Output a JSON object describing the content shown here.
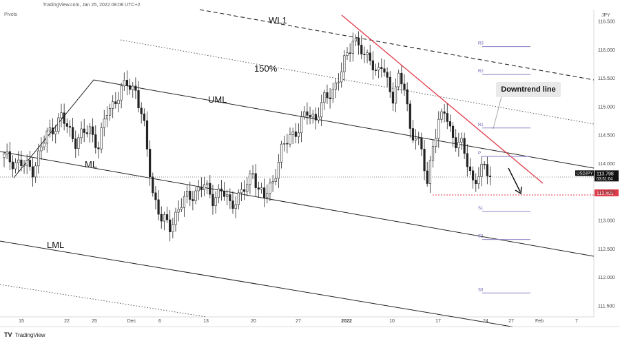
{
  "header": {
    "source_text": "TradingView.com, Jan 25, 2022 08:08 UTC+2",
    "indicator_label": "Pivots",
    "currency_label": "JPY"
  },
  "footer": {
    "brand": "TradingView",
    "brand_icon": "tradingview-logo-icon"
  },
  "colors": {
    "downtrend": "#e03b4a",
    "support_dotted": "#e03b4a",
    "candle": "#222222",
    "pivot_line": "#8a82c8",
    "price_tag_bg": "#111111",
    "support_tag_bg": "#e03b4a"
  },
  "chart_data": {
    "type": "candlestick",
    "symbol": "USDJPY",
    "last_price": "113.798",
    "countdown": "03:51:04",
    "support_price": "113.481",
    "ylim": [
      111.3,
      116.7
    ],
    "y_ticks": [
      "116.500",
      "116.000",
      "115.500",
      "115.000",
      "114.500",
      "114.000",
      "113.500",
      "113.000",
      "112.500",
      "112.000",
      "111.500"
    ],
    "x_ticks": [
      "15",
      "22",
      "25",
      "Dec",
      "6",
      "13",
      "20",
      "27",
      "2022",
      "10",
      "17",
      "24",
      "27",
      "Feb",
      "7"
    ],
    "annotations": [
      "WL1",
      "150%",
      "UML",
      "ML",
      "LML",
      "Downtrend line"
    ],
    "pivot_levels": [
      {
        "label": "R3",
        "value": 116.05
      },
      {
        "label": "R2",
        "value": 115.56
      },
      {
        "label": "R1",
        "value": 114.62
      },
      {
        "label": "P",
        "value": 114.12
      },
      {
        "label": "S1",
        "value": 113.15
      },
      {
        "label": "S2",
        "value": 112.66
      },
      {
        "label": "S3",
        "value": 111.72
      }
    ],
    "close_path": [
      [
        0,
        114.1
      ],
      [
        5,
        114.0
      ],
      [
        10,
        113.9
      ],
      [
        15,
        114.5
      ],
      [
        20,
        114.8
      ],
      [
        25,
        114.4
      ],
      [
        30,
        114.6
      ],
      [
        33,
        114.3
      ],
      [
        36,
        114.9
      ],
      [
        40,
        115.2
      ],
      [
        43,
        115.4
      ],
      [
        46,
        115.3
      ],
      [
        49,
        114.6
      ],
      [
        52,
        113.5
      ],
      [
        55,
        113.0
      ],
      [
        58,
        112.9
      ],
      [
        61,
        113.2
      ],
      [
        64,
        113.4
      ],
      [
        67,
        113.5
      ],
      [
        70,
        113.6
      ],
      [
        73,
        113.4
      ],
      [
        76,
        113.5
      ],
      [
        79,
        113.3
      ],
      [
        82,
        113.4
      ],
      [
        85,
        113.6
      ],
      [
        87,
        113.9
      ],
      [
        89,
        113.5
      ],
      [
        91,
        113.4
      ],
      [
        94,
        113.7
      ],
      [
        97,
        114.2
      ],
      [
        100,
        114.5
      ],
      [
        103,
        114.6
      ],
      [
        106,
        114.9
      ],
      [
        109,
        114.8
      ],
      [
        112,
        115.1
      ],
      [
        115,
        115.3
      ],
      [
        118,
        115.6
      ],
      [
        120,
        115.9
      ],
      [
        122,
        116.2
      ],
      [
        124,
        116.1
      ],
      [
        126,
        115.8
      ],
      [
        128,
        115.9
      ],
      [
        130,
        115.6
      ],
      [
        132,
        115.7
      ],
      [
        134,
        115.4
      ],
      [
        136,
        115.2
      ],
      [
        138,
        115.5
      ],
      [
        140,
        115.3
      ],
      [
        142,
        114.6
      ],
      [
        144,
        114.5
      ],
      [
        146,
        114.2
      ],
      [
        148,
        113.6
      ],
      [
        150,
        114.4
      ],
      [
        152,
        114.7
      ],
      [
        154,
        114.9
      ],
      [
        156,
        114.6
      ],
      [
        158,
        114.4
      ],
      [
        160,
        114.3
      ],
      [
        162,
        114.0
      ],
      [
        164,
        113.7
      ],
      [
        166,
        113.8
      ],
      [
        168,
        113.9
      ],
      [
        170,
        113.8
      ]
    ]
  }
}
